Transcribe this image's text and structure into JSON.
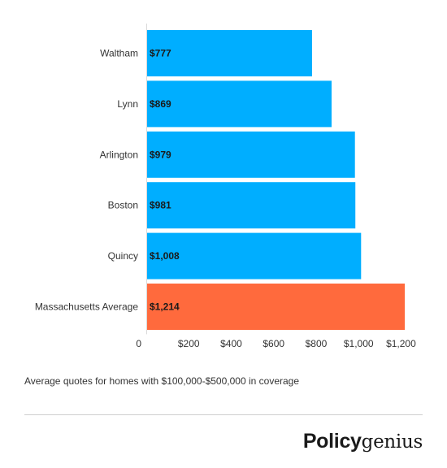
{
  "chart_data": {
    "type": "bar",
    "orientation": "horizontal",
    "categories": [
      "Waltham",
      "Lynn",
      "Arlington",
      "Boston",
      "Quincy",
      "Massachusetts Average"
    ],
    "values": [
      777,
      869,
      979,
      981,
      1008,
      1214
    ],
    "value_labels": [
      "$777",
      "$869",
      "$979",
      "$981",
      "$1,008",
      "$1,214"
    ],
    "x_ticks": [
      0,
      200,
      400,
      600,
      800,
      1000,
      1200
    ],
    "x_tick_labels": [
      "0",
      "$200",
      "$400",
      "$600",
      "$800",
      "$1,000",
      "$1,200"
    ],
    "xlim": [
      0,
      1300
    ],
    "grid": false,
    "title": "",
    "xlabel": "",
    "ylabel": "",
    "colors": {
      "default_bar": "#00aeff",
      "highlight_bar": "#ff6a3d"
    },
    "highlight_category": "Massachusetts Average"
  },
  "caption": "Average quotes for homes with $100,000-$500,000 in coverage",
  "logo": {
    "bold_part": "Policy",
    "light_part": "genius"
  }
}
